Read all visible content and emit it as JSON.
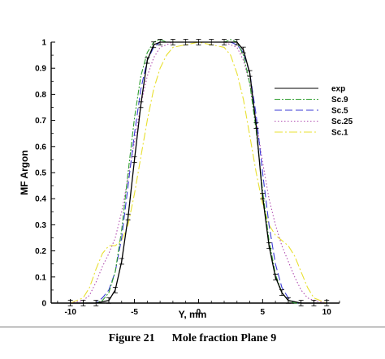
{
  "chart_data": {
    "type": "line",
    "xlabel": "Y, mm",
    "ylabel": "MF Argon",
    "xlim": [
      -11.5,
      11
    ],
    "ylim": [
      0,
      1
    ],
    "xticks": [
      -10,
      -5,
      0,
      5,
      10
    ],
    "yticks": [
      0,
      0.1,
      0.2,
      0.3,
      0.4,
      0.5,
      0.6,
      0.7,
      0.8,
      0.9,
      1
    ],
    "legend_position": "right",
    "series": [
      {
        "name": "exp",
        "color": "#000000",
        "dash": "",
        "errorbars": true,
        "x": [
          -10,
          -9,
          -8,
          -7,
          -6.5,
          -6,
          -5.5,
          -5,
          -4.5,
          -4,
          -3.5,
          -3,
          -2,
          -1,
          0,
          1,
          2,
          3,
          3.5,
          4,
          4.5,
          5,
          5.5,
          6,
          6.5,
          7,
          8,
          9,
          10
        ],
        "y": [
          0.0,
          0.0,
          0.0,
          0.01,
          0.05,
          0.16,
          0.33,
          0.55,
          0.76,
          0.93,
          0.99,
          1.0,
          1.0,
          1.0,
          1.0,
          1.0,
          1.0,
          1.0,
          0.97,
          0.88,
          0.68,
          0.41,
          0.22,
          0.1,
          0.04,
          0.01,
          0.0,
          0.0,
          0.0
        ]
      },
      {
        "name": "Sc.9",
        "color": "#2e9e2e",
        "dash": "7,2,2,2",
        "x": [
          -10,
          -9,
          -8,
          -7.5,
          -7,
          -6.5,
          -6,
          -5.5,
          -5,
          -4.5,
          -4,
          -3.5,
          -3,
          -2.5,
          -2,
          0,
          2,
          2.5,
          3,
          3.5,
          4,
          4.5,
          5,
          5.5,
          6,
          6.5,
          7,
          7.5,
          8,
          9,
          10
        ],
        "y": [
          0.0,
          0.0,
          0.0,
          0.01,
          0.04,
          0.12,
          0.28,
          0.5,
          0.71,
          0.87,
          0.96,
          1.0,
          1.01,
          1.0,
          1.0,
          1.0,
          1.0,
          1.01,
          1.0,
          0.95,
          0.84,
          0.66,
          0.43,
          0.24,
          0.11,
          0.04,
          0.01,
          0.0,
          0.0,
          0.0,
          0.0
        ]
      },
      {
        "name": "Sc.5",
        "color": "#3b3bd6",
        "dash": "9,4",
        "x": [
          -10,
          -9,
          -8,
          -7.5,
          -7,
          -6.5,
          -6,
          -5.5,
          -5,
          -4.5,
          -4,
          -3.5,
          -3,
          -2.5,
          -2,
          0,
          2,
          2.5,
          3,
          3.5,
          4,
          4.5,
          5,
          5.5,
          6,
          6.5,
          7,
          7.5,
          8,
          9,
          10
        ],
        "y": [
          0.0,
          0.0,
          0.0,
          0.02,
          0.05,
          0.12,
          0.25,
          0.45,
          0.65,
          0.82,
          0.93,
          0.98,
          1.0,
          1.0,
          1.0,
          1.0,
          1.0,
          1.0,
          0.99,
          0.96,
          0.88,
          0.72,
          0.5,
          0.3,
          0.15,
          0.06,
          0.02,
          0.0,
          0.0,
          0.0,
          0.0
        ]
      },
      {
        "name": "Sc.25",
        "color": "#b04cb0",
        "dash": "1.5,2.5",
        "x": [
          -10,
          -9,
          -8.5,
          -8,
          -7.5,
          -7,
          -6.5,
          -6,
          -5.5,
          -5,
          -4.5,
          -4,
          -3.5,
          -3,
          -2,
          0,
          2,
          3,
          3.5,
          4,
          4.5,
          5,
          5.5,
          6,
          6.5,
          7,
          7.5,
          8,
          8.5,
          9,
          10
        ],
        "y": [
          0.0,
          0.01,
          0.03,
          0.08,
          0.14,
          0.19,
          0.25,
          0.35,
          0.48,
          0.62,
          0.76,
          0.87,
          0.94,
          0.98,
          1.0,
          1.0,
          1.0,
          0.98,
          0.93,
          0.84,
          0.7,
          0.54,
          0.4,
          0.3,
          0.22,
          0.16,
          0.1,
          0.05,
          0.02,
          0.01,
          0.0
        ]
      },
      {
        "name": "Sc.1",
        "color": "#e8e030",
        "dash": "10,3,2,3",
        "x": [
          -10,
          -9,
          -8.5,
          -8,
          -7.5,
          -7,
          -6.5,
          -6,
          -5.5,
          -5,
          -4.5,
          -4,
          -3.5,
          -3,
          -2.5,
          -2,
          0,
          2,
          2.5,
          3,
          3.5,
          4,
          4.5,
          5,
          5.5,
          6,
          6.5,
          7,
          7.5,
          8,
          8.5,
          9,
          10
        ],
        "y": [
          0.0,
          0.02,
          0.06,
          0.13,
          0.19,
          0.22,
          0.22,
          0.24,
          0.3,
          0.42,
          0.56,
          0.7,
          0.82,
          0.9,
          0.95,
          0.98,
          1.0,
          0.98,
          0.95,
          0.88,
          0.78,
          0.64,
          0.5,
          0.38,
          0.3,
          0.26,
          0.24,
          0.22,
          0.18,
          0.12,
          0.06,
          0.02,
          0.0
        ]
      }
    ]
  },
  "caption": {
    "figure_number": "Figure 21",
    "title": "Mole fraction Plane 9"
  }
}
